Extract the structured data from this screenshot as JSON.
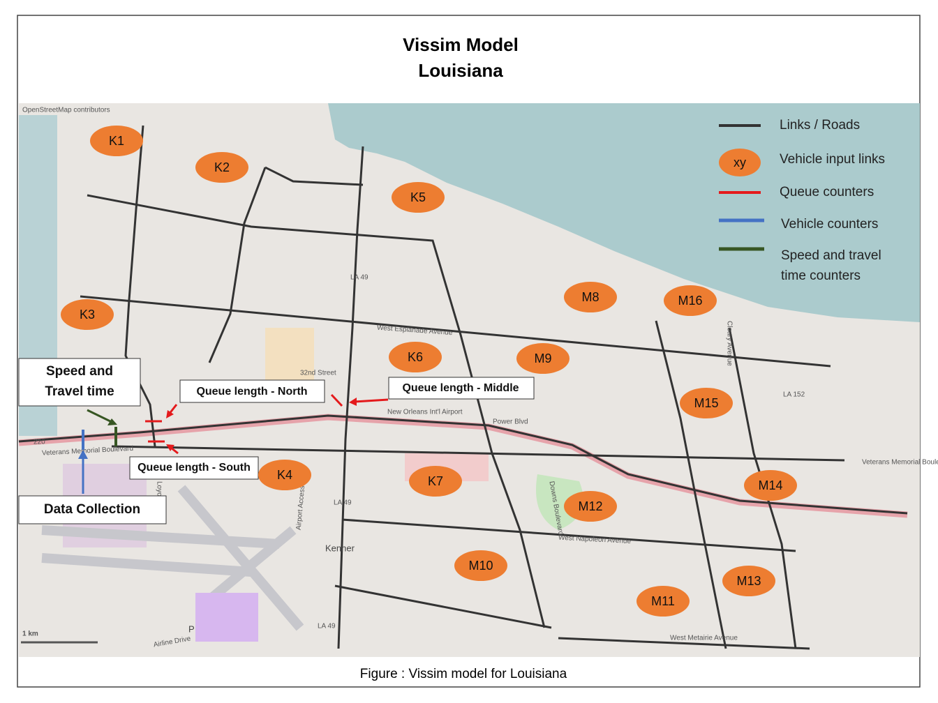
{
  "header": {
    "title_lines": [
      "Vissim Model",
      "Louisiana"
    ]
  },
  "caption": "Figure : Vissim model for Louisiana",
  "map": {
    "attribution": "OpenStreetMap contributors",
    "scale": "1 km",
    "labels": [
      "Kenner",
      "LA 49",
      "LA 49",
      "LA 49",
      "Veterans Memorial Boulevard",
      "Veterans Memorial Boulevard",
      "West Napoleon Avenue",
      "West Esplanade Avenue",
      "Power Blvd",
      "New Orleans Int'l Airport",
      "32nd Street",
      "Airline Drive",
      "Loyola Drive",
      "Cleary Avenue",
      "LA 152",
      "220",
      "Airport Access Road",
      "Downs Boulevard",
      "West Metairie Avenue",
      "P"
    ]
  },
  "legend": [
    {
      "label": "Links / Roads"
    },
    {
      "label": "Vehicle input links",
      "symbol": "xy"
    },
    {
      "label": "Queue counters"
    },
    {
      "label": "Vehicle counters"
    },
    {
      "label_lines": [
        "Speed and travel",
        "time counters"
      ]
    }
  ],
  "zones": [
    "K1",
    "K2",
    "K5",
    "K3",
    "K6",
    "K4",
    "K7",
    "M8",
    "M16",
    "M9",
    "M15",
    "M14",
    "M12",
    "M10",
    "M13",
    "M11"
  ],
  "callouts": {
    "speed": [
      "Speed and",
      "Travel time"
    ],
    "queue_north": "Queue length - North",
    "queue_middle": "Queue length - Middle",
    "queue_south": "Queue length - South",
    "data_collection": "Data Collection"
  }
}
